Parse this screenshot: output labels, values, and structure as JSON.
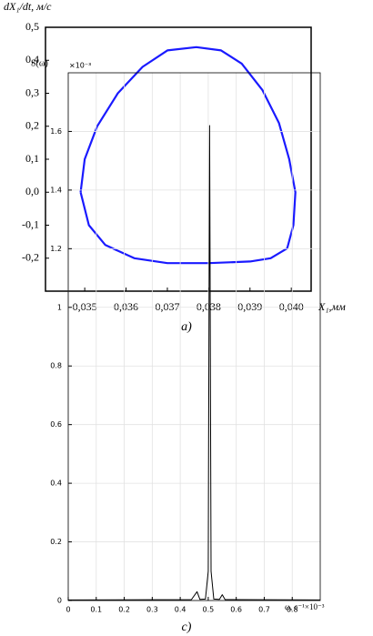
{
  "chart_data": [
    {
      "type": "line",
      "x_label": "X₁,мм",
      "y_label": "dX₁/dt, м/с",
      "caption": "a)",
      "color": "#1a1aff",
      "grid": false,
      "x": [
        0.0349,
        0.035,
        0.0353,
        0.0358,
        0.0364,
        0.037,
        0.0377,
        0.0383,
        0.0388,
        0.0393,
        0.0397,
        0.03995,
        0.0401,
        0.04005,
        0.0399,
        0.0395,
        0.039,
        0.038,
        0.037,
        0.0362,
        0.0355,
        0.0351,
        0.0349
      ],
      "values": [
        0.0,
        0.1,
        0.2,
        0.3,
        0.38,
        0.43,
        0.44,
        0.43,
        0.39,
        0.31,
        0.21,
        0.1,
        0.0,
        -0.1,
        -0.17,
        -0.2,
        -0.21,
        -0.215,
        -0.215,
        -0.2,
        -0.16,
        -0.1,
        0.0
      ],
      "xlim": [
        0.03405,
        0.04048
      ],
      "ylim": [
        -0.3,
        0.5
      ],
      "xticks": [
        {
          "value": 0.035,
          "label": "0,035"
        },
        {
          "value": 0.036,
          "label": "0,036"
        },
        {
          "value": 0.037,
          "label": "0,037"
        },
        {
          "value": 0.038,
          "label": "0,038"
        },
        {
          "value": 0.039,
          "label": "0,039"
        },
        {
          "value": 0.04,
          "label": "0,040"
        }
      ],
      "yticks": [
        {
          "value": -0.2,
          "label": "-0,2"
        },
        {
          "value": -0.1,
          "label": "-0,1"
        },
        {
          "value": 0.0,
          "label": "0,0"
        },
        {
          "value": 0.1,
          "label": "0,1"
        },
        {
          "value": 0.2,
          "label": "0,2"
        },
        {
          "value": 0.3,
          "label": "0,3"
        },
        {
          "value": 0.4,
          "label": "0,4"
        },
        {
          "value": 0.5,
          "label": "0,5"
        }
      ]
    },
    {
      "type": "line",
      "x_label": "ω, c⁻¹×10⁻³",
      "y_label": "S(ω)",
      "y_exponent": "×10⁻³",
      "caption": "c)",
      "color": "#000000",
      "grid": true,
      "x": [
        0,
        0.44,
        0.46,
        0.47,
        0.49,
        0.5,
        0.505,
        0.51,
        0.52,
        0.54,
        0.55,
        0.56,
        0.9
      ],
      "values": [
        0.002,
        0.003,
        0.03,
        0.004,
        0.005,
        0.1,
        1.62,
        0.1,
        0.005,
        0.004,
        0.02,
        0.003,
        0.002
      ],
      "xlim": [
        0,
        0.9
      ],
      "ylim": [
        0,
        1.8
      ],
      "xticks": [
        0,
        0.1,
        0.2,
        0.3,
        0.4,
        0.5,
        0.6,
        0.7,
        0.8
      ],
      "yticks": [
        0,
        0.2,
        0.4,
        0.6,
        0.8,
        1,
        1.2,
        1.4,
        1.6
      ]
    }
  ]
}
